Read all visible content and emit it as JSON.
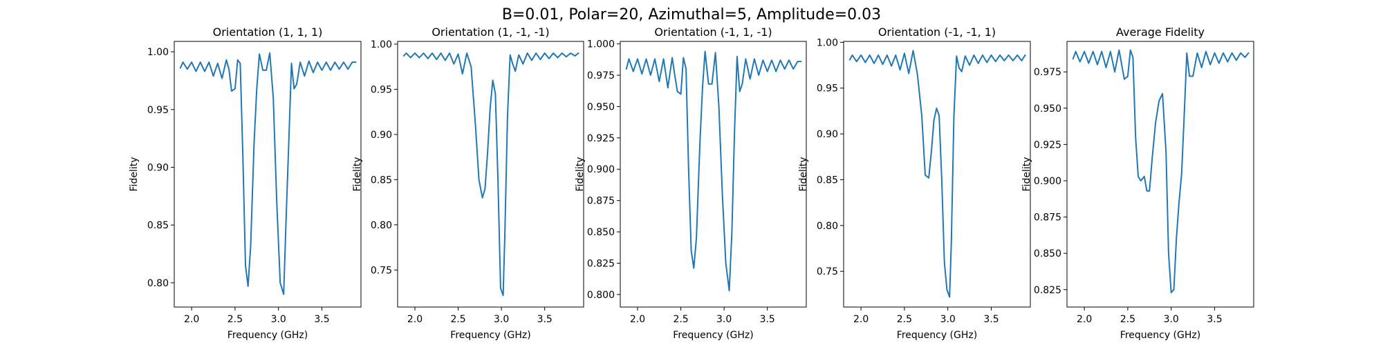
{
  "figure": {
    "title": "B=0.01, Polar=20, Azimuthal=5, Amplitude=0.03"
  },
  "chart_data": [
    {
      "type": "line",
      "title": "Orientation (1, 1, 1)",
      "xlabel": "Frequency (GHz)",
      "ylabel": "Fidelity",
      "xlim": [
        1.8,
        3.95
      ],
      "ylim": [
        0.779,
        1.009
      ],
      "xticks": [
        2.0,
        2.5,
        3.0,
        3.5
      ],
      "xtick_labels": [
        "2.0",
        "2.5",
        "3.0",
        "3.5"
      ],
      "yticks": [
        0.8,
        0.85,
        0.9,
        0.95,
        1.0
      ],
      "ytick_labels": [
        "0.80",
        "0.85",
        "0.90",
        "0.95",
        "1.00"
      ],
      "series": [
        {
          "x": [
            1.87,
            1.9,
            1.95,
            2.0,
            2.05,
            2.1,
            2.15,
            2.2,
            2.25,
            2.3,
            2.35,
            2.4,
            2.43,
            2.46,
            2.5,
            2.53,
            2.56,
            2.59,
            2.62,
            2.65,
            2.68,
            2.72,
            2.75,
            2.78,
            2.82,
            2.86,
            2.9,
            2.94,
            2.98,
            3.02,
            3.06,
            3.09,
            3.12,
            3.15,
            3.18,
            3.21,
            3.25,
            3.3,
            3.35,
            3.4,
            3.45,
            3.5,
            3.55,
            3.6,
            3.65,
            3.7,
            3.75,
            3.8,
            3.85,
            3.89
          ],
          "y": [
            0.986,
            0.991,
            0.985,
            0.991,
            0.983,
            0.991,
            0.983,
            0.991,
            0.979,
            0.99,
            0.977,
            0.993,
            0.985,
            0.966,
            0.968,
            0.993,
            0.99,
            0.91,
            0.815,
            0.797,
            0.832,
            0.922,
            0.968,
            0.998,
            0.984,
            0.984,
            0.999,
            0.96,
            0.87,
            0.8,
            0.79,
            0.86,
            0.925,
            0.99,
            0.968,
            0.972,
            0.991,
            0.979,
            0.992,
            0.982,
            0.991,
            0.984,
            0.991,
            0.984,
            0.991,
            0.985,
            0.991,
            0.985,
            0.991,
            0.991
          ]
        }
      ]
    },
    {
      "type": "line",
      "title": "Orientation (1, -1, -1)",
      "xlabel": "Frequency (GHz)",
      "ylabel": "Fidelity",
      "xlim": [
        1.8,
        3.95
      ],
      "ylim": [
        0.709,
        1.003
      ],
      "xticks": [
        2.0,
        2.5,
        3.0,
        3.5
      ],
      "xtick_labels": [
        "2.0",
        "2.5",
        "3.0",
        "3.5"
      ],
      "yticks": [
        0.75,
        0.8,
        0.85,
        0.9,
        0.95,
        1.0
      ],
      "ytick_labels": [
        "0.75",
        "0.80",
        "0.85",
        "0.90",
        "0.95",
        "1.00"
      ],
      "series": [
        {
          "x": [
            1.87,
            1.9,
            1.95,
            2.0,
            2.05,
            2.1,
            2.15,
            2.2,
            2.25,
            2.3,
            2.35,
            2.4,
            2.45,
            2.5,
            2.55,
            2.6,
            2.65,
            2.7,
            2.74,
            2.78,
            2.81,
            2.84,
            2.87,
            2.9,
            2.93,
            2.96,
            2.99,
            3.02,
            3.04,
            3.07,
            3.1,
            3.13,
            3.16,
            3.2,
            3.25,
            3.3,
            3.35,
            3.4,
            3.45,
            3.5,
            3.55,
            3.6,
            3.65,
            3.7,
            3.75,
            3.8,
            3.85,
            3.89
          ],
          "y": [
            0.987,
            0.99,
            0.985,
            0.99,
            0.985,
            0.99,
            0.984,
            0.99,
            0.983,
            0.99,
            0.982,
            0.99,
            0.978,
            0.989,
            0.967,
            0.99,
            0.975,
            0.91,
            0.85,
            0.83,
            0.84,
            0.88,
            0.93,
            0.96,
            0.945,
            0.85,
            0.73,
            0.722,
            0.79,
            0.92,
            0.988,
            0.978,
            0.97,
            0.988,
            0.978,
            0.99,
            0.982,
            0.99,
            0.983,
            0.99,
            0.984,
            0.99,
            0.985,
            0.99,
            0.986,
            0.99,
            0.987,
            0.99
          ]
        }
      ]
    },
    {
      "type": "line",
      "title": "Orientation (-1, 1, -1)",
      "xlabel": "Frequency (GHz)",
      "ylabel": "Fidelity",
      "xlim": [
        1.8,
        3.95
      ],
      "ylim": [
        0.79,
        1.002
      ],
      "xticks": [
        2.0,
        2.5,
        3.0,
        3.5
      ],
      "xtick_labels": [
        "2.0",
        "2.5",
        "3.0",
        "3.5"
      ],
      "yticks": [
        0.8,
        0.825,
        0.85,
        0.875,
        0.9,
        0.925,
        0.95,
        0.975,
        1.0
      ],
      "ytick_labels": [
        "0.800",
        "0.825",
        "0.850",
        "0.875",
        "0.900",
        "0.925",
        "0.950",
        "0.975",
        "1.000"
      ],
      "series": [
        {
          "x": [
            1.87,
            1.9,
            1.95,
            2.0,
            2.05,
            2.1,
            2.15,
            2.2,
            2.25,
            2.3,
            2.35,
            2.4,
            2.43,
            2.46,
            2.5,
            2.53,
            2.56,
            2.59,
            2.62,
            2.65,
            2.68,
            2.72,
            2.75,
            2.78,
            2.82,
            2.86,
            2.9,
            2.94,
            2.98,
            3.02,
            3.06,
            3.09,
            3.12,
            3.15,
            3.18,
            3.21,
            3.25,
            3.3,
            3.35,
            3.4,
            3.45,
            3.5,
            3.55,
            3.6,
            3.65,
            3.7,
            3.75,
            3.8,
            3.85,
            3.89
          ],
          "y": [
            0.98,
            0.988,
            0.978,
            0.988,
            0.976,
            0.988,
            0.975,
            0.988,
            0.97,
            0.988,
            0.965,
            0.989,
            0.975,
            0.962,
            0.96,
            0.989,
            0.98,
            0.9,
            0.835,
            0.821,
            0.845,
            0.92,
            0.965,
            0.994,
            0.968,
            0.968,
            0.993,
            0.95,
            0.88,
            0.825,
            0.803,
            0.85,
            0.93,
            0.99,
            0.962,
            0.968,
            0.988,
            0.972,
            0.988,
            0.975,
            0.987,
            0.978,
            0.987,
            0.978,
            0.987,
            0.98,
            0.987,
            0.98,
            0.986,
            0.986
          ]
        }
      ]
    },
    {
      "type": "line",
      "title": "Orientation (-1, -1, 1)",
      "xlabel": "Frequency (GHz)",
      "ylabel": "Fidelity",
      "xlim": [
        1.8,
        3.95
      ],
      "ylim": [
        0.711,
        1.001
      ],
      "xticks": [
        2.0,
        2.5,
        3.0,
        3.5
      ],
      "xtick_labels": [
        "2.0",
        "2.5",
        "3.0",
        "3.5"
      ],
      "yticks": [
        0.75,
        0.8,
        0.85,
        0.9,
        0.95,
        1.0
      ],
      "ytick_labels": [
        "0.75",
        "0.80",
        "0.85",
        "0.90",
        "0.95",
        "1.00"
      ],
      "series": [
        {
          "x": [
            1.87,
            1.9,
            1.95,
            2.0,
            2.05,
            2.1,
            2.15,
            2.2,
            2.25,
            2.3,
            2.35,
            2.4,
            2.45,
            2.5,
            2.55,
            2.6,
            2.65,
            2.7,
            2.74,
            2.78,
            2.81,
            2.84,
            2.87,
            2.9,
            2.93,
            2.96,
            2.99,
            3.02,
            3.04,
            3.07,
            3.1,
            3.13,
            3.16,
            3.2,
            3.25,
            3.3,
            3.35,
            3.4,
            3.45,
            3.5,
            3.55,
            3.6,
            3.65,
            3.7,
            3.75,
            3.8,
            3.85,
            3.89
          ],
          "y": [
            0.981,
            0.986,
            0.979,
            0.986,
            0.978,
            0.986,
            0.977,
            0.986,
            0.976,
            0.986,
            0.974,
            0.986,
            0.97,
            0.988,
            0.966,
            0.991,
            0.965,
            0.92,
            0.855,
            0.852,
            0.88,
            0.915,
            0.928,
            0.92,
            0.85,
            0.76,
            0.73,
            0.722,
            0.78,
            0.92,
            0.985,
            0.972,
            0.968,
            0.985,
            0.975,
            0.986,
            0.977,
            0.986,
            0.978,
            0.986,
            0.979,
            0.986,
            0.98,
            0.986,
            0.98,
            0.986,
            0.98,
            0.986
          ]
        }
      ]
    },
    {
      "type": "line",
      "title": "Average Fidelity",
      "xlabel": "Frequency (GHz)",
      "ylabel": "Fidelity",
      "xlim": [
        1.8,
        3.95
      ],
      "ylim": [
        0.813,
        0.996
      ],
      "xticks": [
        2.0,
        2.5,
        3.0,
        3.5
      ],
      "xtick_labels": [
        "2.0",
        "2.5",
        "3.0",
        "3.5"
      ],
      "yticks": [
        0.825,
        0.85,
        0.875,
        0.9,
        0.925,
        0.95,
        0.975
      ],
      "ytick_labels": [
        "0.825",
        "0.850",
        "0.875",
        "0.900",
        "0.925",
        "0.950",
        "0.975"
      ],
      "series": [
        {
          "x": [
            1.87,
            1.9,
            1.95,
            2.0,
            2.05,
            2.1,
            2.15,
            2.2,
            2.25,
            2.3,
            2.35,
            2.4,
            2.43,
            2.46,
            2.5,
            2.53,
            2.56,
            2.59,
            2.62,
            2.65,
            2.69,
            2.72,
            2.75,
            2.78,
            2.82,
            2.86,
            2.9,
            2.94,
            2.97,
            3.0,
            3.03,
            3.06,
            3.09,
            3.12,
            3.15,
            3.18,
            3.21,
            3.25,
            3.3,
            3.35,
            3.4,
            3.45,
            3.5,
            3.55,
            3.6,
            3.65,
            3.7,
            3.75,
            3.8,
            3.85,
            3.89
          ],
          "y": [
            0.984,
            0.989,
            0.982,
            0.989,
            0.981,
            0.989,
            0.98,
            0.989,
            0.978,
            0.989,
            0.975,
            0.99,
            0.98,
            0.97,
            0.972,
            0.99,
            0.985,
            0.93,
            0.903,
            0.9,
            0.903,
            0.893,
            0.893,
            0.915,
            0.94,
            0.955,
            0.96,
            0.92,
            0.85,
            0.823,
            0.825,
            0.86,
            0.885,
            0.905,
            0.945,
            0.988,
            0.972,
            0.972,
            0.988,
            0.978,
            0.989,
            0.98,
            0.988,
            0.981,
            0.988,
            0.982,
            0.988,
            0.983,
            0.988,
            0.985,
            0.988
          ]
        }
      ]
    }
  ]
}
